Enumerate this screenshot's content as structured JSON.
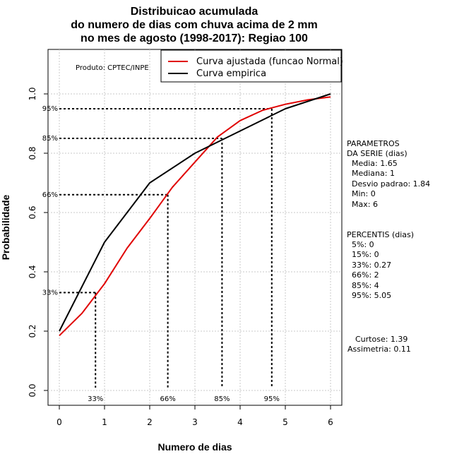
{
  "chart_data": {
    "type": "line",
    "title": [
      "Distribuicao acumulada",
      "do numero de dias com chuva acima de 2 mm",
      "no mes de agosto (1998-2017): Regiao 100"
    ],
    "xlabel": "Numero de dias",
    "ylabel": "Probabilidade",
    "xlim": [
      -0.25,
      6.25
    ],
    "ylim": [
      -0.05,
      1.15
    ],
    "x_ticks": [
      0,
      1,
      2,
      3,
      4,
      5,
      6
    ],
    "y_ticks": [
      0.0,
      0.2,
      0.4,
      0.6,
      0.8,
      1.0
    ],
    "x_tick_labels": [
      "0",
      "1",
      "2",
      "3",
      "4",
      "5",
      "6"
    ],
    "y_tick_labels": [
      "0.0",
      "0.2",
      "0.4",
      "0.6",
      "0.8",
      "1.0"
    ],
    "grid": true,
    "producer": "Produto: CPTEC/INPE",
    "legend": {
      "position": "top-right",
      "entries": [
        {
          "label": "Curva ajustada (funcao Normal)",
          "color": "#e00000"
        },
        {
          "label": "Curva empirica",
          "color": "#000000"
        }
      ]
    },
    "series": [
      {
        "name": "Curva ajustada (funcao Normal)",
        "color": "#e00000",
        "x": [
          0,
          0.5,
          1,
          1.5,
          2,
          2.5,
          3,
          3.5,
          4,
          4.5,
          5,
          5.5,
          6
        ],
        "y": [
          0.185,
          0.26,
          0.36,
          0.48,
          0.58,
          0.685,
          0.77,
          0.855,
          0.91,
          0.945,
          0.965,
          0.98,
          0.99
        ]
      },
      {
        "name": "Curva empirica",
        "color": "#000000",
        "x": [
          0,
          1,
          2,
          3,
          4,
          5,
          6
        ],
        "y": [
          0.2,
          0.5,
          0.7,
          0.8,
          0.875,
          0.95,
          1.0
        ]
      }
    ],
    "percentile_markers": [
      {
        "label": "33%",
        "x": 0.8,
        "y": 0.33
      },
      {
        "label": "66%",
        "x": 2.4,
        "y": 0.66
      },
      {
        "label": "85%",
        "x": 3.6,
        "y": 0.85
      },
      {
        "label": "95%",
        "x": 4.7,
        "y": 0.95
      }
    ],
    "side_panel": {
      "parametros_header": [
        "PARAMETROS",
        "DA SERIE (dias)"
      ],
      "parametros": [
        "Media: 1.65",
        "Mediana: 1",
        "Desvio padrao: 1.84",
        "Min: 0",
        "Max: 6"
      ],
      "percentis_header": "PERCENTIS (dias)",
      "percentis": [
        "5%: 0",
        "15%: 0",
        "33%: 0.27",
        "66%: 2",
        "85%: 4",
        "95%: 5.05"
      ],
      "curtose": "Curtose: 1.39",
      "assimetria": "Assimetria: 0.11"
    }
  }
}
